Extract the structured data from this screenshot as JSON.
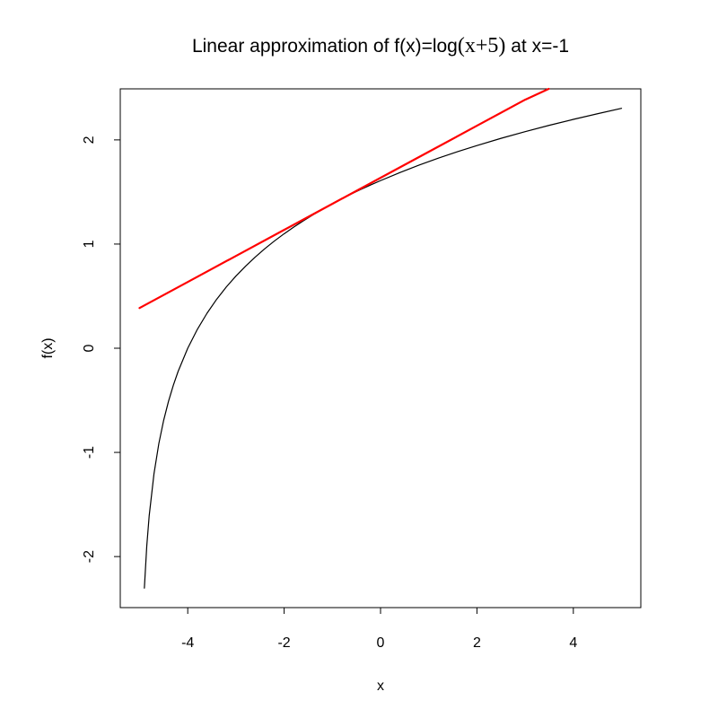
{
  "chart_data": {
    "type": "line",
    "title": {
      "prefix": "Linear approximation of f(x)=log",
      "math": "(x+5)",
      "suffix": " at x=-1"
    },
    "xlabel": "x",
    "ylabel": "f(x)",
    "xlim": [
      -5.4,
      5.4
    ],
    "ylim": [
      -2.49,
      2.49
    ],
    "x_ticks": [
      -4,
      -2,
      0,
      2,
      4
    ],
    "y_ticks": [
      -2,
      -1,
      0,
      1,
      2
    ],
    "x_tick_labels": [
      "-4",
      "-2",
      "0",
      "2",
      "4"
    ],
    "y_tick_labels": [
      "-2",
      "-1",
      "0",
      "1",
      "2"
    ],
    "grid": false,
    "legend": "none",
    "series": [
      {
        "function": "log(x+5)",
        "color": "#000000",
        "x": [
          -4.9,
          -4.85,
          -4.8,
          -4.7,
          -4.6,
          -4.5,
          -4.4,
          -4.3,
          -4.2,
          -4.0,
          -3.8,
          -3.6,
          -3.4,
          -3.2,
          -3.0,
          -2.8,
          -2.6,
          -2.4,
          -2.2,
          -2.0,
          -1.8,
          -1.6,
          -1.4,
          -1.2,
          -1.0,
          -0.8,
          -0.6,
          -0.4,
          -0.2,
          0.0,
          0.4,
          0.8,
          1.2,
          1.6,
          2.0,
          2.5,
          3.0,
          3.5,
          4.0,
          4.5,
          5.0
        ],
        "y": [
          -2.303,
          -1.897,
          -1.609,
          -1.204,
          -0.916,
          -0.693,
          -0.511,
          -0.357,
          -0.223,
          0.0,
          0.182,
          0.336,
          0.47,
          0.588,
          0.693,
          0.788,
          0.875,
          0.956,
          1.03,
          1.099,
          1.163,
          1.224,
          1.281,
          1.335,
          1.386,
          1.435,
          1.482,
          1.526,
          1.569,
          1.609,
          1.686,
          1.758,
          1.825,
          1.887,
          1.946,
          2.015,
          2.079,
          2.14,
          2.197,
          2.251,
          2.303
        ]
      },
      {
        "function": "log(4) + (x+1)/4",
        "color": "#ff0000",
        "x": [
          -5.0,
          -4.0,
          -3.0,
          -2.0,
          -1.0,
          0.0,
          1.0,
          2.0,
          3.0,
          3.49
        ],
        "y": [
          0.386,
          0.636,
          0.886,
          1.136,
          1.386,
          1.636,
          1.886,
          2.136,
          2.386,
          2.49
        ]
      }
    ]
  }
}
